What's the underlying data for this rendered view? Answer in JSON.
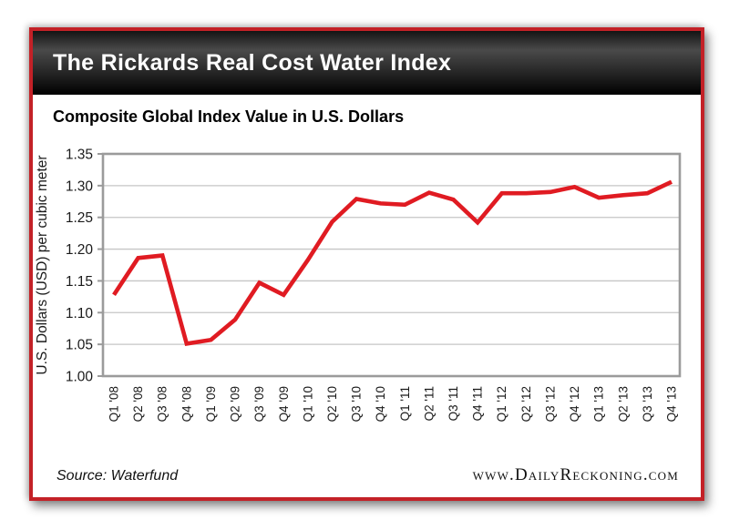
{
  "window": {
    "title": "The Rickards Real Cost Water Index"
  },
  "subtitle": "Composite Global Index Value in U.S. Dollars",
  "footer": {
    "source": "Source: Waterfund",
    "website": "www.DailyReckoning.com"
  },
  "colors": {
    "card_border_red": "#c32127",
    "line_red": "#e01b22",
    "grid_gray": "#c6c6c6",
    "plot_border_gray": "#9b9b9b",
    "header_text": "#ffffff",
    "tick_text": "#1a1a1a"
  },
  "chart_data": {
    "type": "line",
    "title": "Composite Global Index Value in U.S. Dollars",
    "ylabel": "U.S. Dollars (USD) per cubic meter",
    "xlabel": "",
    "categories": [
      "Q1 '08",
      "Q2 '08",
      "Q3 '08",
      "Q4 '08",
      "Q1 '09",
      "Q2 '09",
      "Q3 '09",
      "Q4 '09",
      "Q1 '10",
      "Q2 '10",
      "Q3 '10",
      "Q4 '10",
      "Q1 '11",
      "Q2 '11",
      "Q3 '11",
      "Q4 '11",
      "Q1 '12",
      "Q2 '12",
      "Q3 '12",
      "Q4 '12",
      "Q1 '13",
      "Q2 '13",
      "Q3 '13",
      "Q4 '13"
    ],
    "values": [
      1.128,
      1.186,
      1.19,
      1.051,
      1.057,
      1.089,
      1.147,
      1.128,
      1.183,
      1.243,
      1.279,
      1.272,
      1.27,
      1.289,
      1.278,
      1.242,
      1.288,
      1.288,
      1.29,
      1.298,
      1.281,
      1.285,
      1.288,
      1.306
    ],
    "ylim": [
      1.0,
      1.35
    ],
    "yticks": [
      1.0,
      1.05,
      1.1,
      1.15,
      1.2,
      1.25,
      1.3,
      1.35
    ],
    "grid": true,
    "legend": "none",
    "line_color": "#e01b22"
  }
}
